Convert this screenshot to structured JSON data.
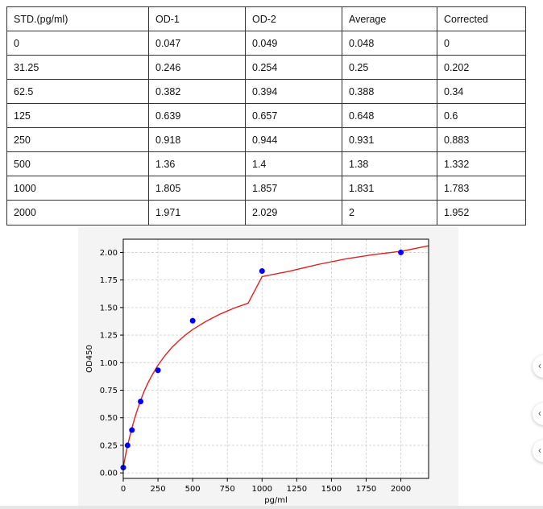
{
  "table": {
    "headers": [
      "STD.(pg/ml)",
      "OD-1",
      "OD-2",
      "Average",
      "Corrected"
    ],
    "rows": [
      [
        "0",
        "0.047",
        "0.049",
        "0.048",
        "0"
      ],
      [
        "31.25",
        "0.246",
        "0.254",
        "0.25",
        "0.202"
      ],
      [
        "62.5",
        "0.382",
        "0.394",
        "0.388",
        "0.34"
      ],
      [
        "125",
        "0.639",
        "0.657",
        "0.648",
        "0.6"
      ],
      [
        "250",
        "0.918",
        "0.944",
        "0.931",
        "0.883"
      ],
      [
        "500",
        "1.36",
        "1.4",
        "1.38",
        "1.332"
      ],
      [
        "1000",
        "1.805",
        "1.857",
        "1.831",
        "1.783"
      ],
      [
        "2000",
        "1.971",
        "2.029",
        "2",
        "1.952"
      ]
    ]
  },
  "chart_data": {
    "type": "scatter",
    "title": "",
    "xlabel": "pg/ml",
    "ylabel": "OD450",
    "xlim": [
      0,
      2200
    ],
    "ylim": [
      -0.05,
      2.12
    ],
    "xticks": [
      "0",
      "250",
      "500",
      "750",
      "1000",
      "1250",
      "1500",
      "1750",
      "2000"
    ],
    "yticks": [
      "0.00",
      "0.25",
      "0.50",
      "0.75",
      "1.00",
      "1.25",
      "1.50",
      "1.75",
      "2.00"
    ],
    "grid": true,
    "points": {
      "x": [
        0,
        31.25,
        62.5,
        125,
        250,
        500,
        1000,
        2000
      ],
      "y": [
        0.048,
        0.25,
        0.388,
        0.648,
        0.931,
        1.38,
        1.831,
        2.0
      ],
      "color": "#0000ff"
    },
    "fit_curve": {
      "color": "#dd2222",
      "x": [
        0,
        10,
        20,
        31.25,
        45,
        62.5,
        80,
        100,
        125,
        150,
        175,
        200,
        250,
        300,
        350,
        400,
        450,
        500,
        600,
        700,
        800,
        900,
        1000,
        1200,
        1400,
        1600,
        1800,
        2000,
        2200
      ],
      "y": [
        0.048,
        0.118,
        0.182,
        0.248,
        0.322,
        0.408,
        0.486,
        0.566,
        0.657,
        0.738,
        0.808,
        0.87,
        0.977,
        1.064,
        1.137,
        1.199,
        1.253,
        1.3,
        1.378,
        1.442,
        1.495,
        1.54,
        1.78,
        1.83,
        1.89,
        1.94,
        1.98,
        2.01,
        2.06
      ]
    }
  },
  "colors": {
    "plot_bg": "#ffffff",
    "figure_bg": "#f4f4f4",
    "grid": "#cfcfcf",
    "axis": "#000000"
  }
}
